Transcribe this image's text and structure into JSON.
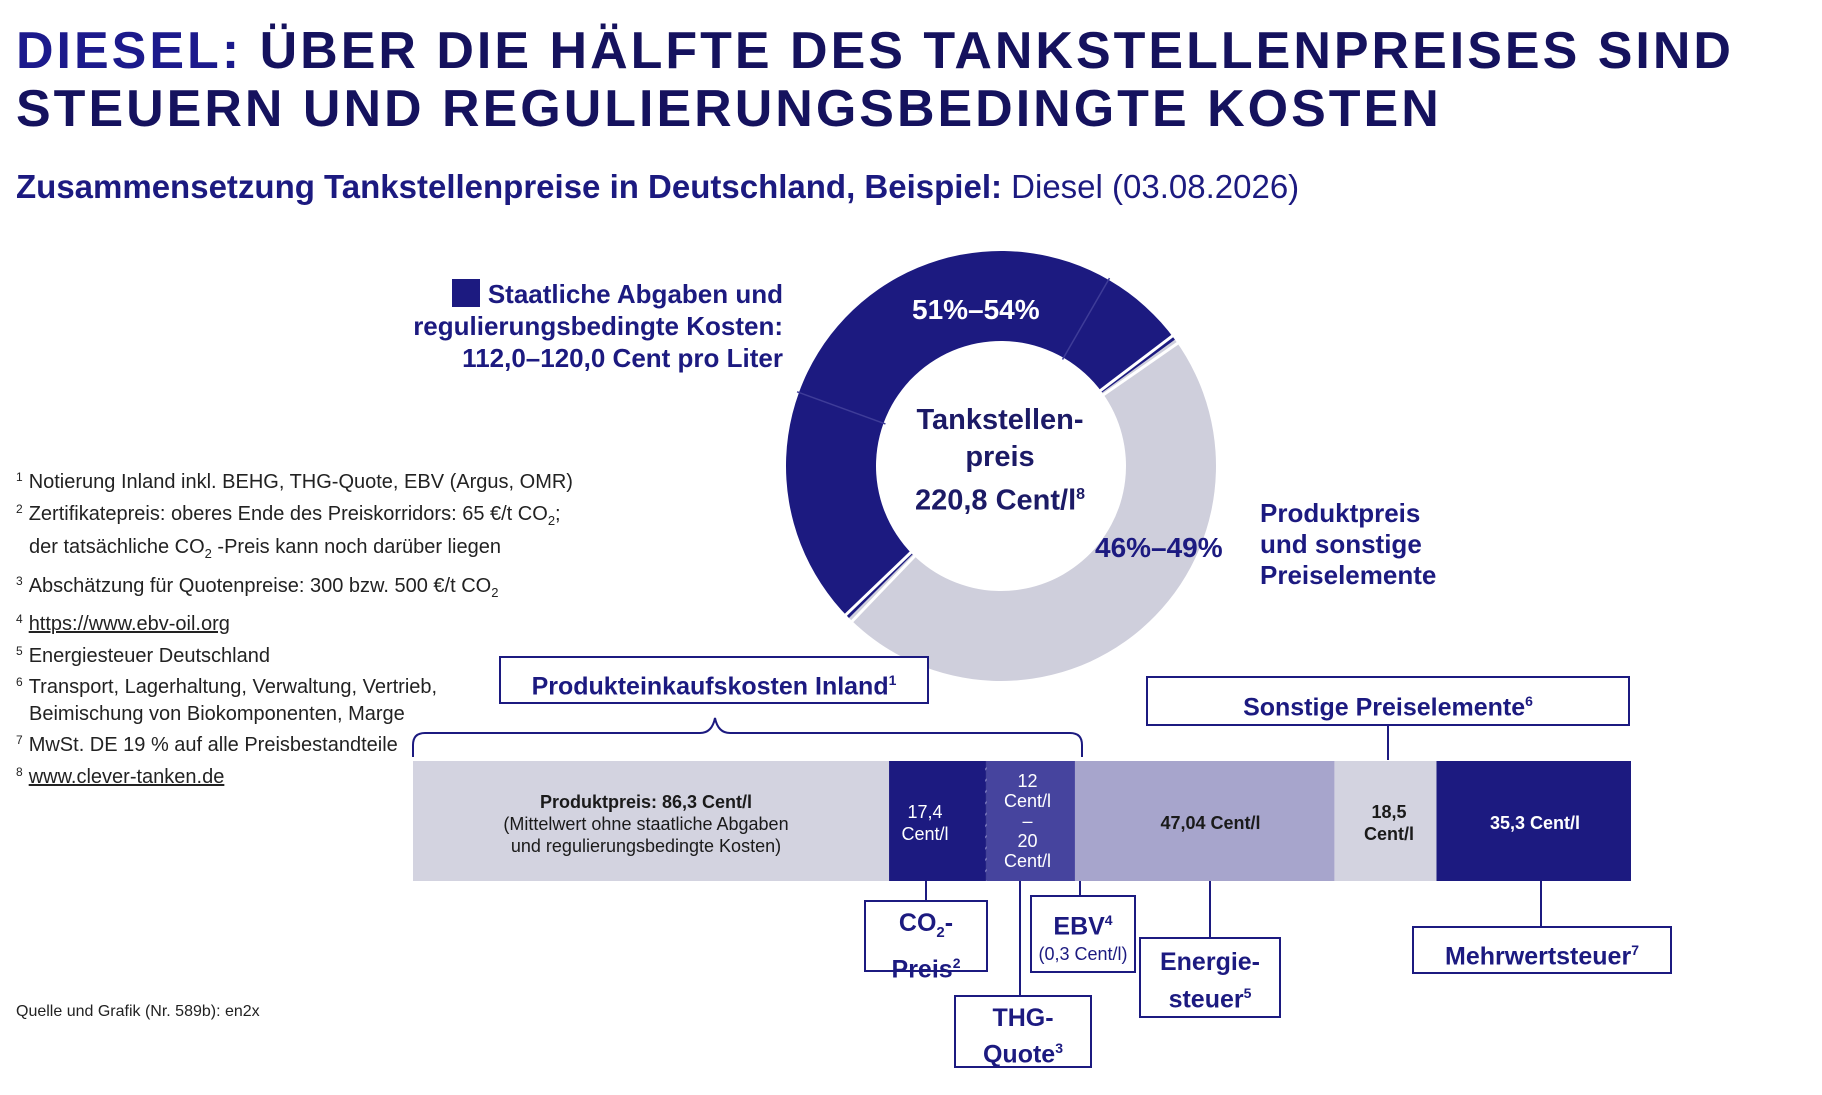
{
  "header": {
    "title_accent": "DIESEL:",
    "title_line1_rest": "ÜBER DIE HÄLFTE DES TANKSTELLENPREISES SIND",
    "title_line2": "STEUERN UND REGULIERUNGSBEDINGTE KOSTEN",
    "subtitle_bold": "Zusammensetzung Tankstellenpreise in Deutschland, Beispiel:",
    "subtitle_regular": "Diesel (03.08.2026)"
  },
  "donut": {
    "legend_line1": "Staatliche Abgaben und",
    "legend_line2": "regulierungsbedingte Kosten:",
    "legend_line3": "112,0–120,0 Cent pro Liter",
    "dark_pct": "51%–54%",
    "light_pct": "46%–49%",
    "light_label_line1": "Produktpreis",
    "light_label_line2": "und sonstige",
    "light_label_line3": "Preiselemente",
    "center_line1": "Tankstellen-",
    "center_line2": "preis",
    "center_line3": "220,8 Cent/l",
    "center_sup": "8",
    "colors": {
      "dark": "#1c1a80",
      "light": "#cfcfdc"
    }
  },
  "chart_data": {
    "type": "bar",
    "orientation": "horizontal-stacked",
    "unit": "Cent/l",
    "segments": [
      {
        "name": "Produktpreis",
        "value": 86.3,
        "color": "#d3d3e0"
      },
      {
        "name": "CO2-Preis",
        "value": 17.4,
        "color": "#1c1a80"
      },
      {
        "name": "EBV",
        "value": 0.3,
        "color": "#46449e"
      },
      {
        "name": "THG-Quote",
        "value_range": [
          12,
          20
        ],
        "color": "#46449e"
      },
      {
        "name": "Energiesteuer",
        "value": 47.04,
        "color": "#a7a5cc"
      },
      {
        "name": "Sonstige Preiselemente",
        "value": 18.5,
        "color": "#d3d3e0"
      },
      {
        "name": "Mehrwertsteuer",
        "value": 35.3,
        "color": "#1c1a80"
      }
    ],
    "donut": {
      "total": 220.8,
      "dark_share_range": [
        51,
        54
      ],
      "light_share_range": [
        46,
        49
      ]
    }
  },
  "bar_labels": {
    "produkt_line1": "Produktpreis: 86,3 Cent/l",
    "produkt_line2": "(Mittelwert ohne staatliche Abgaben",
    "produkt_line3": "und regulierungsbedingte Kosten)",
    "co2_line1": "17,4",
    "co2_line2": "Cent/l",
    "thg_line1": "12",
    "thg_line2": "Cent/l",
    "thg_line3": "–",
    "thg_line4": "20",
    "thg_line5": "Cent/l",
    "energie": "47,04 Cent/l",
    "sonstige_line1": "18,5",
    "sonstige_line2": "Cent/l",
    "mwst": "35,3 Cent/l"
  },
  "boxes": {
    "produkteinkauf": "Produkteinkaufskosten Inland",
    "produkteinkauf_sup": "1",
    "sonstige": "Sonstige Preiselemente",
    "sonstige_sup": "6",
    "co2_a": "CO",
    "co2_sub": "2",
    "co2_b": "-",
    "co2_line2": "Preis",
    "co2_sup": "2",
    "ebv": "EBV",
    "ebv_sup": "4",
    "ebv_line2": "(0,3 Cent/l)",
    "thg_line1": "THG-",
    "thg_line2": "Quote",
    "thg_sup": "3",
    "energie_line1": "Energie-",
    "energie_line2": "steuer",
    "energie_sup": "5",
    "mwst": "Mehrwertsteuer",
    "mwst_sup": "7"
  },
  "footnotes": {
    "n1": "1",
    "f1": "Notierung Inland inkl. BEHG, THG-Quote, EBV (Argus, OMR)",
    "n2": "2",
    "f2a": "Zertifikatepreis: oberes Ende des Preiskorridors: 65 €/t CO",
    "f2a_sub": "2",
    "f2a_end": ";",
    "f2b": "der tatsächliche CO",
    "f2b_sub": "2",
    "f2b_end": " -Preis kann noch darüber liegen",
    "n3": "3",
    "f3": "Abschätzung für Quotenpreise: 300 bzw. 500 €/t CO",
    "f3_sub": "2",
    "n4": "4",
    "f4": "https://www.ebv-oil.org",
    "n5": "5",
    "f5": "Energiesteuer Deutschland",
    "n6": "6",
    "f6a": "Transport, Lagerhaltung, Verwaltung, Vertrieb,",
    "f6b": "Beimischung von Biokomponenten, Marge",
    "n7": "7",
    "f7": "MwSt. DE 19 % auf alle Preisbestandteile",
    "n8": "8",
    "f8": "www.clever-tanken.de"
  },
  "source": "Quelle und Grafik (Nr. 589b): en2x"
}
